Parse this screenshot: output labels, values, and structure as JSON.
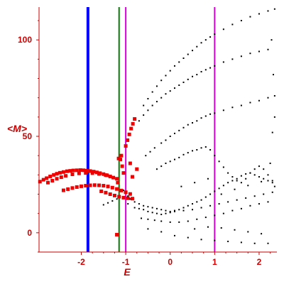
{
  "chart_data": {
    "type": "scatter",
    "title": "",
    "xlabel": "E",
    "ylabel": "<M>",
    "xlim": [
      -2.95,
      2.4
    ],
    "ylim": [
      -10,
      117
    ],
    "x_ticks": [
      -2,
      -1,
      0,
      1,
      2
    ],
    "y_ticks": [
      0,
      50,
      100
    ],
    "grid": false,
    "colors": {
      "axis": "#cc0000",
      "red_points": "#ee0000",
      "black_points": "#000000",
      "blue_line": "#0000ff",
      "green_line": "#008000",
      "magenta_line": "#dd00dd"
    },
    "vertical_lines": [
      {
        "x": -1.85,
        "color": "#0000ff",
        "style": "thick"
      },
      {
        "x": -1.15,
        "color": "#008000",
        "style": "thin"
      },
      {
        "x": -1.0,
        "color": "#dd00dd",
        "style": "thin"
      },
      {
        "x": 1.0,
        "color": "#dd00dd",
        "style": "thin"
      }
    ],
    "series": [
      {
        "color": "#ee0000",
        "points": [
          [
            -2.93,
            26.5
          ],
          [
            -2.85,
            27.5
          ],
          [
            -2.78,
            28.3
          ],
          [
            -2.7,
            29.2
          ],
          [
            -2.62,
            30.0
          ],
          [
            -2.55,
            30.6
          ],
          [
            -2.48,
            31.1
          ],
          [
            -2.4,
            31.5
          ],
          [
            -2.32,
            31.9
          ],
          [
            -2.25,
            32.1
          ],
          [
            -2.18,
            32.3
          ],
          [
            -2.1,
            32.4
          ],
          [
            -2.02,
            32.5
          ],
          [
            -1.95,
            32.4
          ],
          [
            -1.88,
            32.2
          ],
          [
            -1.8,
            32.0
          ],
          [
            -1.72,
            31.7
          ],
          [
            -1.65,
            31.3
          ],
          [
            -1.58,
            30.9
          ],
          [
            -1.5,
            30.4
          ],
          [
            -1.42,
            29.8
          ],
          [
            -1.35,
            29.2
          ],
          [
            -1.28,
            28.6
          ],
          [
            -1.2,
            28.0
          ],
          [
            -2.75,
            26.0
          ],
          [
            -2.65,
            27.0
          ],
          [
            -2.55,
            28.0
          ],
          [
            -2.45,
            28.8
          ],
          [
            -2.35,
            29.5
          ],
          [
            -2.2,
            30.3
          ],
          [
            -2.05,
            30.8
          ],
          [
            -1.9,
            31.0
          ],
          [
            -1.75,
            30.9
          ],
          [
            -1.6,
            30.5
          ],
          [
            -1.45,
            29.9
          ],
          [
            -2.4,
            22.0
          ],
          [
            -2.3,
            22.6
          ],
          [
            -2.2,
            23.2
          ],
          [
            -2.1,
            23.7
          ],
          [
            -2.0,
            24.1
          ],
          [
            -1.9,
            24.4
          ],
          [
            -1.8,
            24.6
          ],
          [
            -1.7,
            24.7
          ],
          [
            -1.6,
            24.6
          ],
          [
            -1.5,
            24.4
          ],
          [
            -1.4,
            24.0
          ],
          [
            -1.3,
            23.4
          ],
          [
            -1.2,
            22.7
          ],
          [
            -1.1,
            21.9
          ],
          [
            -1.0,
            21.0
          ],
          [
            -0.9,
            20.1
          ],
          [
            -1.55,
            21.5
          ],
          [
            -1.45,
            20.8
          ],
          [
            -1.35,
            20.0
          ],
          [
            -1.25,
            19.3
          ],
          [
            -1.15,
            18.7
          ],
          [
            -1.05,
            18.2
          ],
          [
            -0.95,
            17.9
          ],
          [
            -0.85,
            17.7
          ],
          [
            -1.16,
            38.5
          ],
          [
            -1.12,
            38.0
          ],
          [
            -1.0,
            45.0
          ],
          [
            -0.96,
            48.0
          ],
          [
            -0.92,
            51.0
          ],
          [
            -0.88,
            54.0
          ],
          [
            -0.84,
            56.5
          ],
          [
            -0.8,
            59.0
          ],
          [
            -1.1,
            40.0
          ],
          [
            -1.08,
            34.5
          ],
          [
            -1.05,
            31.0
          ],
          [
            -0.9,
            36.0
          ],
          [
            -0.85,
            29.0
          ],
          [
            -0.75,
            33.0
          ],
          [
            -1.18,
            26.0
          ],
          [
            -1.2,
            -1.0
          ]
        ]
      },
      {
        "color": "#000000",
        "points": [
          [
            -0.6,
            66.0
          ],
          [
            -0.5,
            69.5
          ],
          [
            -0.4,
            73.0
          ],
          [
            -0.3,
            76.0
          ],
          [
            -0.2,
            79.0
          ],
          [
            -0.1,
            81.5
          ],
          [
            0.0,
            84.0
          ],
          [
            0.1,
            86.5
          ],
          [
            0.2,
            88.5
          ],
          [
            0.3,
            90.5
          ],
          [
            0.4,
            92.5
          ],
          [
            0.5,
            94.5
          ],
          [
            0.6,
            96.5
          ],
          [
            0.7,
            98.5
          ],
          [
            0.8,
            100.0
          ],
          [
            0.9,
            101.5
          ],
          [
            1.0,
            103.0
          ],
          [
            1.2,
            105.5
          ],
          [
            1.4,
            108.0
          ],
          [
            1.6,
            110.0
          ],
          [
            1.8,
            112.0
          ],
          [
            2.0,
            113.5
          ],
          [
            2.2,
            115.0
          ],
          [
            2.35,
            116.0
          ],
          [
            -0.7,
            58.0
          ],
          [
            -0.6,
            61.0
          ],
          [
            -0.5,
            63.5
          ],
          [
            -0.4,
            66.0
          ],
          [
            -0.3,
            68.0
          ],
          [
            -0.2,
            70.0
          ],
          [
            -0.1,
            72.0
          ],
          [
            0.0,
            73.5
          ],
          [
            0.1,
            75.0
          ],
          [
            0.2,
            76.5
          ],
          [
            0.3,
            78.0
          ],
          [
            0.4,
            79.5
          ],
          [
            0.5,
            81.0
          ],
          [
            0.6,
            82.0
          ],
          [
            0.7,
            83.5
          ],
          [
            0.8,
            84.5
          ],
          [
            0.9,
            85.5
          ],
          [
            1.0,
            86.5
          ],
          [
            1.2,
            88.5
          ],
          [
            1.4,
            90.0
          ],
          [
            1.6,
            91.5
          ],
          [
            1.8,
            93.0
          ],
          [
            2.0,
            94.0
          ],
          [
            2.2,
            95.0
          ],
          [
            -0.55,
            40.0
          ],
          [
            -0.45,
            42.0
          ],
          [
            -0.35,
            44.0
          ],
          [
            -0.2,
            46.5
          ],
          [
            -0.1,
            48.0
          ],
          [
            0.0,
            50.0
          ],
          [
            0.1,
            51.5
          ],
          [
            0.2,
            53.0
          ],
          [
            0.3,
            54.5
          ],
          [
            0.4,
            56.0
          ],
          [
            0.5,
            57.0
          ],
          [
            0.6,
            58.0
          ],
          [
            0.7,
            59.5
          ],
          [
            0.8,
            60.5
          ],
          [
            0.9,
            61.5
          ],
          [
            1.0,
            62.0
          ],
          [
            1.2,
            63.5
          ],
          [
            1.4,
            65.0
          ],
          [
            1.6,
            66.0
          ],
          [
            1.8,
            67.5
          ],
          [
            2.0,
            68.5
          ],
          [
            2.2,
            70.0
          ],
          [
            2.35,
            71.0
          ],
          [
            -0.3,
            33.0
          ],
          [
            -0.2,
            34.5
          ],
          [
            -0.1,
            36.0
          ],
          [
            0.0,
            37.0
          ],
          [
            0.1,
            38.0
          ],
          [
            0.2,
            39.0
          ],
          [
            0.3,
            40.5
          ],
          [
            0.4,
            41.5
          ],
          [
            0.5,
            42.5
          ],
          [
            0.6,
            43.0
          ],
          [
            0.7,
            44.0
          ],
          [
            0.8,
            44.5
          ],
          [
            0.9,
            43.0
          ],
          [
            1.0,
            40.0
          ],
          [
            1.1,
            37.0
          ],
          [
            1.2,
            34.0
          ],
          [
            1.3,
            31.0
          ],
          [
            1.4,
            29.0
          ],
          [
            1.5,
            27.0
          ],
          [
            1.6,
            26.0
          ],
          [
            1.7,
            28.0
          ],
          [
            1.8,
            31.0
          ],
          [
            1.9,
            33.0
          ],
          [
            2.0,
            34.5
          ],
          [
            2.1,
            33.0
          ],
          [
            2.2,
            30.0
          ],
          [
            2.3,
            27.0
          ],
          [
            2.35,
            24.0
          ],
          [
            -1.05,
            22.0
          ],
          [
            -0.95,
            19.0
          ],
          [
            -0.9,
            17.5
          ],
          [
            -0.8,
            16.0
          ],
          [
            -0.7,
            15.0
          ],
          [
            -0.6,
            14.0
          ],
          [
            -0.5,
            13.5
          ],
          [
            -0.4,
            13.0
          ],
          [
            -0.3,
            12.5
          ],
          [
            -0.2,
            12.0
          ],
          [
            -0.1,
            11.5
          ],
          [
            0.0,
            11.0
          ],
          [
            0.1,
            11.5
          ],
          [
            0.2,
            12.0
          ],
          [
            0.3,
            13.0
          ],
          [
            0.4,
            14.0
          ],
          [
            0.5,
            15.0
          ],
          [
            0.6,
            16.0
          ],
          [
            0.7,
            17.0
          ],
          [
            0.8,
            18.5
          ],
          [
            0.9,
            20.0
          ],
          [
            1.0,
            21.5
          ],
          [
            1.1,
            23.0
          ],
          [
            1.2,
            24.5
          ],
          [
            1.3,
            26.0
          ],
          [
            1.4,
            27.0
          ],
          [
            1.5,
            28.0
          ],
          [
            1.6,
            29.5
          ],
          [
            1.7,
            30.5
          ],
          [
            1.8,
            31.0
          ],
          [
            1.9,
            30.0
          ],
          [
            2.0,
            29.0
          ],
          [
            2.1,
            28.0
          ],
          [
            2.2,
            27.0
          ],
          [
            2.3,
            26.0
          ],
          [
            -0.8,
            13.0
          ],
          [
            -0.7,
            12.5
          ],
          [
            -0.6,
            12.0
          ],
          [
            -0.5,
            11.0
          ],
          [
            -0.4,
            10.5
          ],
          [
            -0.3,
            10.0
          ],
          [
            -0.2,
            9.5
          ],
          [
            -0.1,
            10.0
          ],
          [
            0.0,
            10.5
          ],
          [
            0.1,
            11.0
          ],
          [
            0.3,
            11.5
          ],
          [
            0.5,
            12.0
          ],
          [
            0.7,
            13.0
          ],
          [
            0.9,
            14.0
          ],
          [
            1.1,
            15.0
          ],
          [
            1.3,
            16.0
          ],
          [
            1.5,
            17.0
          ],
          [
            1.7,
            18.0
          ],
          [
            1.9,
            19.0
          ],
          [
            2.1,
            20.0
          ],
          [
            2.3,
            21.0
          ],
          [
            -0.65,
            7.5
          ],
          [
            -0.5,
            7.0
          ],
          [
            -0.35,
            6.5
          ],
          [
            -0.2,
            6.0
          ],
          [
            0.0,
            5.5
          ],
          [
            0.2,
            5.5
          ],
          [
            0.4,
            6.0
          ],
          [
            0.6,
            7.0
          ],
          [
            0.8,
            8.0
          ],
          [
            1.0,
            9.0
          ],
          [
            1.2,
            10.0
          ],
          [
            1.4,
            11.5
          ],
          [
            1.6,
            12.5
          ],
          [
            1.8,
            14.0
          ],
          [
            2.0,
            15.0
          ],
          [
            2.2,
            16.0
          ],
          [
            -0.5,
            2.0
          ],
          [
            -0.2,
            0.5
          ],
          [
            0.1,
            -1.5
          ],
          [
            0.4,
            -2.5
          ],
          [
            0.7,
            -3.5
          ],
          [
            1.0,
            -4.0
          ],
          [
            1.3,
            -4.5
          ],
          [
            1.6,
            -5.0
          ],
          [
            1.9,
            -5.5
          ],
          [
            2.2,
            -5.5
          ],
          [
            -1.3,
            16.5
          ],
          [
            -1.4,
            15.5
          ],
          [
            -1.5,
            14.5
          ],
          [
            -1.2,
            17.5
          ],
          [
            -0.95,
            15.0
          ],
          [
            0.55,
            2.0
          ],
          [
            0.85,
            3.0
          ],
          [
            1.15,
            2.5
          ],
          [
            1.45,
            1.5
          ],
          [
            1.75,
            0.5
          ],
          [
            2.05,
            -0.5
          ],
          [
            0.25,
            24.0
          ],
          [
            0.55,
            26.0
          ],
          [
            0.85,
            28.0
          ],
          [
            1.15,
            20.0
          ],
          [
            1.45,
            22.5
          ],
          [
            1.75,
            24.5
          ],
          [
            2.05,
            26.5
          ],
          [
            2.25,
            36.0
          ],
          [
            2.3,
            52.0
          ],
          [
            2.35,
            60.0
          ],
          [
            2.32,
            82.0
          ],
          [
            2.28,
            100.0
          ]
        ]
      }
    ]
  }
}
